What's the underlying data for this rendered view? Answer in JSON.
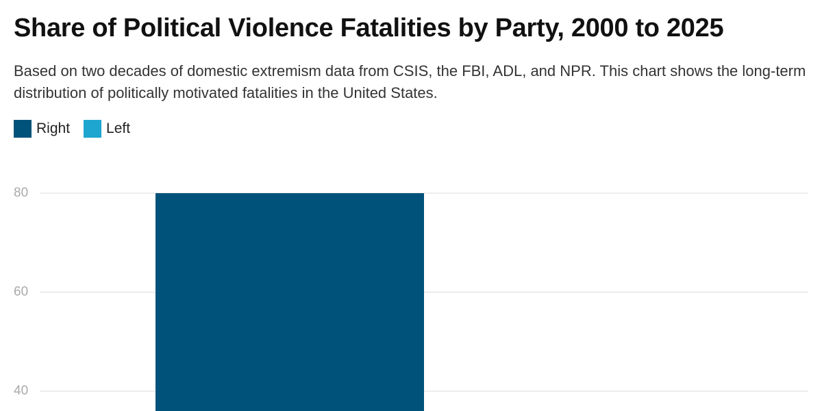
{
  "chart_data": {
    "type": "bar",
    "title": "Share of Political Violence Fatalities by Party, 2000 to 2025",
    "subtitle": "Based on two decades of domestic extremism data from CSIS, the FBI, ADL, and NPR. This chart shows the long-term distribution of politically motivated fatalities in the United States.",
    "categories": [
      null
    ],
    "series": [
      {
        "name": "Right",
        "color": "#00527a",
        "values": [
          80
        ]
      },
      {
        "name": "Left",
        "color": "#1ea5d0",
        "values": [
          null
        ]
      }
    ],
    "ylim": [
      36,
      80
    ],
    "yticks": [
      40,
      60,
      80
    ],
    "grid": true
  }
}
